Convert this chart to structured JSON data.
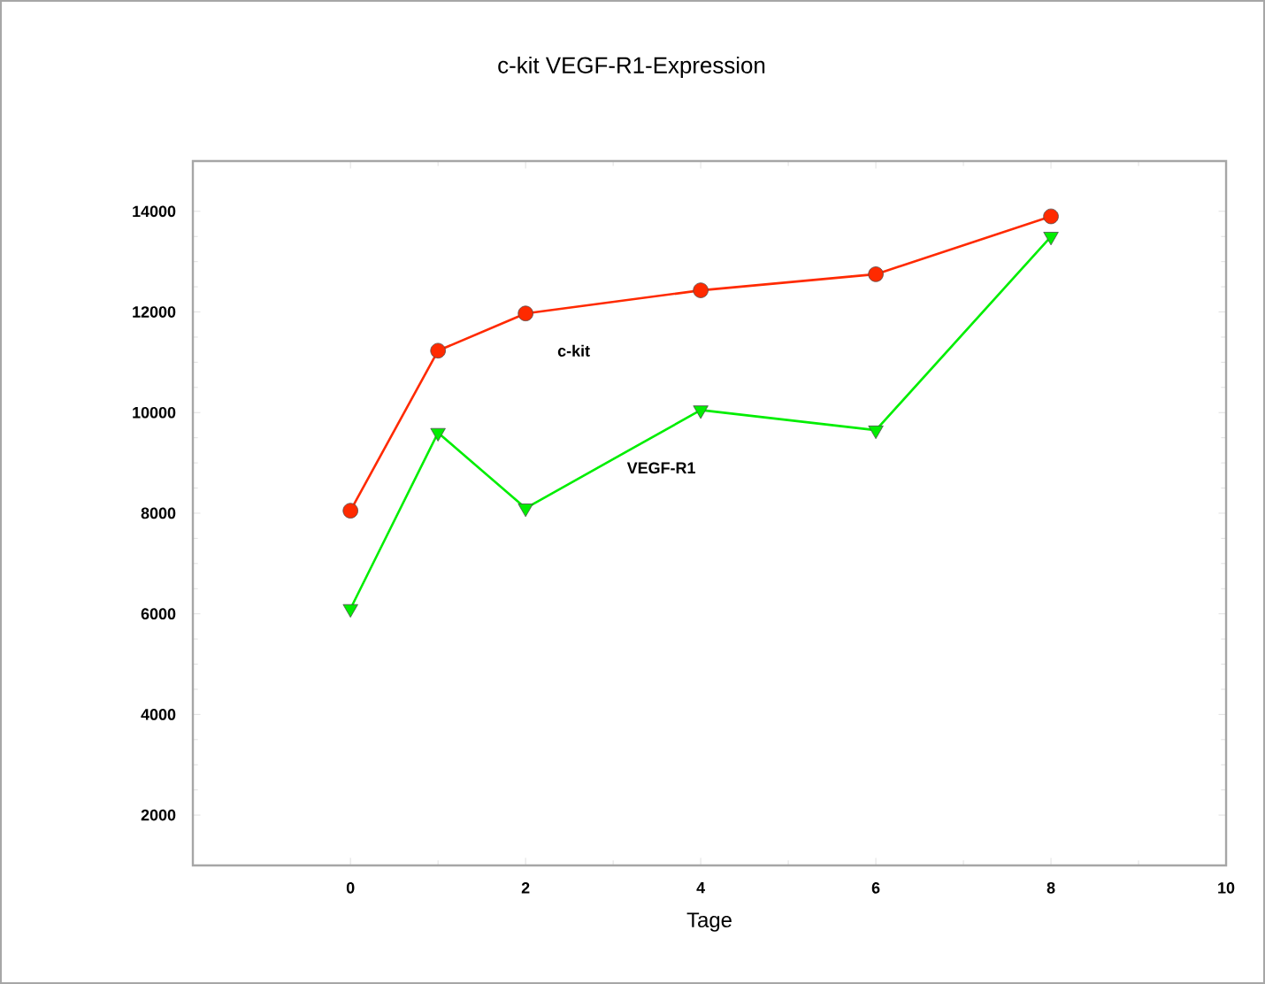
{
  "chart_data": {
    "type": "line",
    "title": "c-kit VEGF-R1-Expression",
    "xlabel": "Tage",
    "x": [
      0,
      1,
      2,
      4,
      6,
      8
    ],
    "series": [
      {
        "name": "c-kit",
        "color": "#ff2a00",
        "values": [
          8050,
          11230,
          11970,
          12430,
          12750,
          13900
        ],
        "marker": "circle"
      },
      {
        "name": "VEGF-R1",
        "color": "#00ee00",
        "values": [
          6100,
          9600,
          8100,
          10050,
          9650,
          13500
        ],
        "marker": "triangle"
      }
    ],
    "xlim": [
      -1.8,
      10
    ],
    "ylim": [
      1000,
      15000
    ],
    "xticks": [
      0,
      2,
      4,
      6,
      8,
      10
    ],
    "yticks": [
      2000,
      4000,
      6000,
      8000,
      10000,
      12000,
      14000
    ],
    "grid": false,
    "line_style": "solid"
  }
}
